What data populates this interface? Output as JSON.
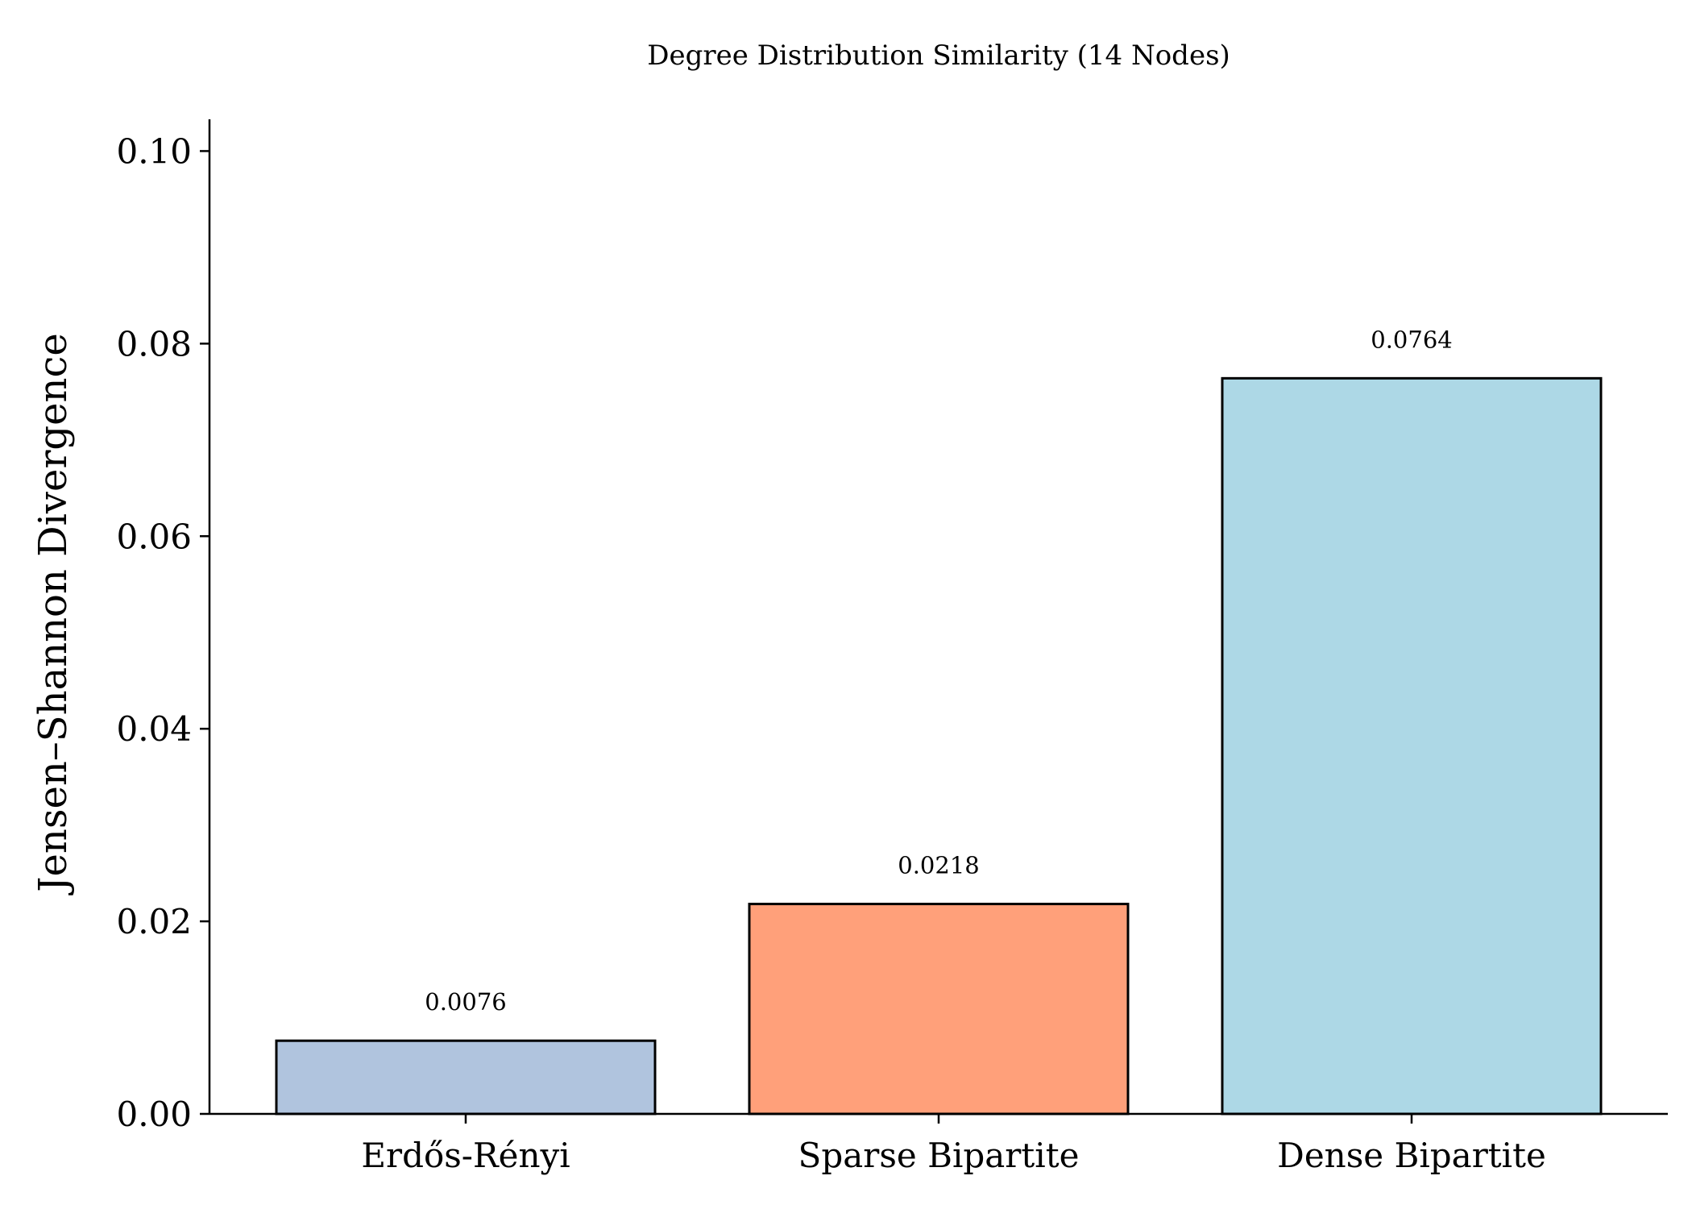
{
  "chart_data": {
    "type": "bar",
    "title": "Degree Distribution Similarity (14 Nodes)",
    "xlabel": "",
    "ylabel": "Jensen–Shannon Divergence",
    "categories": [
      "Erdős-Rényi",
      "Sparse Bipartite",
      "Dense Bipartite"
    ],
    "values": [
      0.0076,
      0.0218,
      0.0764
    ],
    "value_labels": [
      "0.0076",
      "0.0218",
      "0.0764"
    ],
    "colors": [
      "#b0c4de",
      "#ffa07a",
      "#add8e6"
    ],
    "ylim": [
      0,
      0.1033
    ],
    "yticks": [
      0.0,
      0.02,
      0.04,
      0.06,
      0.08,
      0.1
    ],
    "ytick_labels": [
      "0.00",
      "0.02",
      "0.04",
      "0.06",
      "0.08",
      "0.10"
    ],
    "grid": false,
    "legend": "none"
  }
}
